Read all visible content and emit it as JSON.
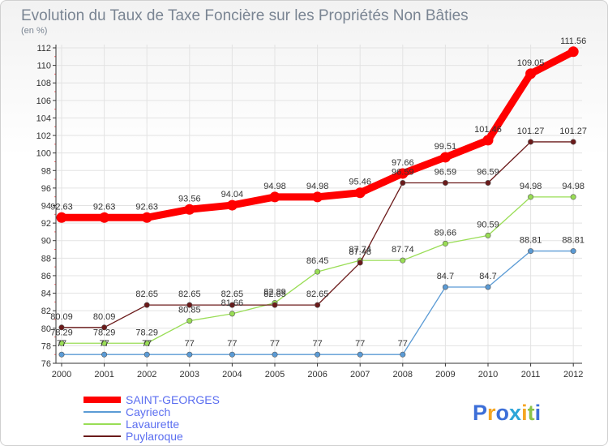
{
  "chart_data": {
    "type": "line",
    "title": "Evolution du Taux de Taxe Foncière sur les Propriétés Non Bâties",
    "subtitle": "(en %)",
    "xlabel": "",
    "ylabel": "",
    "categories": [
      "2000",
      "2001",
      "2002",
      "2003",
      "2004",
      "2005",
      "2006",
      "2007",
      "2008",
      "2009",
      "2010",
      "2011",
      "2012"
    ],
    "ylim": [
      76,
      112
    ],
    "yticks": [
      76,
      78,
      80,
      82,
      84,
      86,
      88,
      90,
      92,
      94,
      96,
      98,
      100,
      102,
      104,
      106,
      108,
      110,
      112
    ],
    "grid": true,
    "legend_position": "bottom-left",
    "series": [
      {
        "name": "SAINT-GEORGES",
        "color": "#ff0000",
        "values": [
          92.63,
          92.63,
          92.63,
          93.56,
          94.04,
          94.98,
          94.98,
          95.46,
          97.66,
          99.51,
          101.46,
          109.05,
          111.56
        ],
        "labels": [
          "92.63",
          "92.63",
          "92.63",
          "93.56",
          "94.04",
          "94.98",
          "94.98",
          "95.46",
          "97.66",
          "99.51",
          "101.46",
          "109.05",
          "111.56"
        ]
      },
      {
        "name": "Cayriech",
        "color": "#5b9bd5",
        "values": [
          77,
          77,
          77,
          77,
          77,
          77,
          77,
          77,
          77,
          84.7,
          84.7,
          88.81,
          88.81
        ],
        "labels": [
          "77",
          "77",
          "77",
          "77",
          "77",
          "77",
          "77",
          "77",
          "77",
          "84.7",
          "84.7",
          "88.81",
          "88.81"
        ]
      },
      {
        "name": "Lavaurette",
        "color": "#99dd55",
        "values": [
          78.29,
          78.29,
          78.29,
          80.85,
          81.66,
          82.89,
          86.45,
          87.74,
          87.74,
          89.66,
          90.59,
          94.98,
          94.98
        ],
        "labels": [
          "78.29",
          "78.29",
          "78.29",
          "80.85",
          "81.66",
          "82.89",
          "86.45",
          "87.74",
          "87.74",
          "89.66",
          "90.59",
          "94.98",
          "94.98"
        ]
      },
      {
        "name": "Puylaroque",
        "color": "#6b1a1a",
        "values": [
          80.09,
          80.09,
          82.65,
          82.65,
          82.65,
          82.65,
          82.65,
          87.48,
          96.59,
          96.59,
          96.59,
          101.27,
          101.27
        ],
        "labels": [
          "80.09",
          "80.09",
          "82.65",
          "82.65",
          "82.65",
          "82.65",
          "82.65",
          "87.48",
          "96.59",
          "96.59",
          "96.59",
          "101.27",
          "101.27"
        ]
      }
    ]
  },
  "legend": {
    "items": [
      {
        "label": "SAINT-GEORGES",
        "color": "#ff0000",
        "text_color": "#5b6ef0"
      },
      {
        "label": "Cayriech",
        "color": "#5b9bd5",
        "text_color": "#5b6ef0"
      },
      {
        "label": "Lavaurette",
        "color": "#99dd55",
        "text_color": "#5b6ef0"
      },
      {
        "label": "Puylaroque",
        "color": "#6b1a1a",
        "text_color": "#5b6ef0"
      }
    ]
  },
  "logo": {
    "text": "Proxiti",
    "letters": [
      "P",
      "r",
      "o",
      "x",
      "i",
      "t",
      "i"
    ],
    "colors": [
      "#3d6fd8",
      "#f5a623",
      "#3d6fd8",
      "#2ea6d8",
      "#f5a623",
      "#8bc34a",
      "#3d6fd8"
    ]
  }
}
